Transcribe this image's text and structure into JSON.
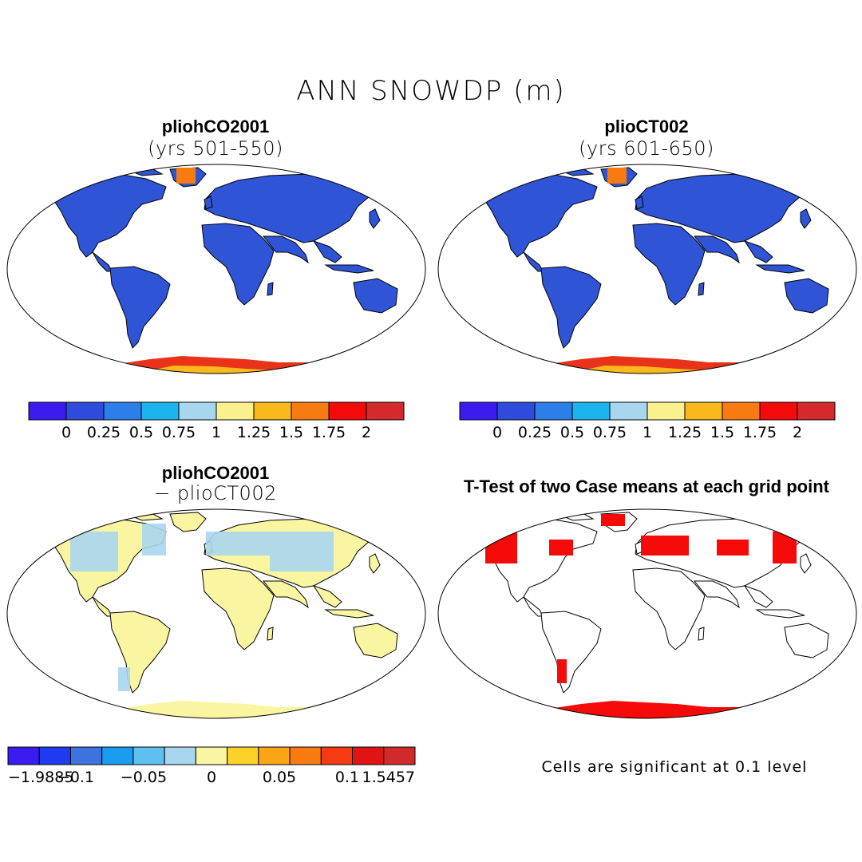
{
  "title": "ANN SNOWDP (m)",
  "panels": [
    {
      "name": "pliohCO2001",
      "subtitle": "(yrs 501-550)"
    },
    {
      "name": "plioCT002",
      "subtitle": "(yrs 601-650)"
    },
    {
      "name": "pliohCO2001",
      "subtitle": "− plioCT002"
    },
    {
      "name": "T-Test of two Case means at each grid point",
      "subtitle": ""
    }
  ],
  "colorbar_abs": {
    "colors": [
      "#3a1cf0",
      "#2f4bdc",
      "#2c7ee8",
      "#1bb4ef",
      "#a8d6ef",
      "#faf08e",
      "#f9b81b",
      "#f87b12",
      "#f50a0a",
      "#d6292d"
    ],
    "labels": [
      "0",
      "0.25",
      "0.5",
      "0.75",
      "1",
      "1.25",
      "1.5",
      "1.75",
      "2"
    ]
  },
  "colorbar_diff": {
    "colors": [
      "#3a1cf0",
      "#1f3bf0",
      "#3e72de",
      "#1b9cf0",
      "#5ec0f0",
      "#a8d6ef",
      "#faf5a0",
      "#fcd22a",
      "#faa516",
      "#f87b12",
      "#f53a14",
      "#e01414",
      "#cf2b2b"
    ],
    "labels": [
      "−1.9885",
      "−0.1",
      "−0.05",
      "0",
      "0.05",
      "0.1",
      "1.5457"
    ]
  },
  "significance_note": "Cells are significant at 0.1 level",
  "colors": {
    "land_fill": "#2f55d6",
    "antarctic_fill": "#e8321a",
    "diff_fill": "#faf5a0",
    "sig_fill": "#f50a0a"
  }
}
